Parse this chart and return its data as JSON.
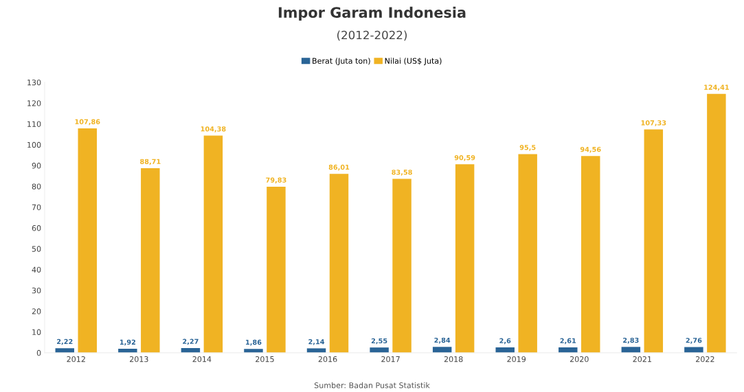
{
  "chart_data": {
    "type": "bar",
    "title": "Impor Garam Indonesia",
    "subtitle": "(2012-2022)",
    "categories": [
      "2012",
      "2013",
      "2014",
      "2015",
      "2016",
      "2017",
      "2018",
      "2019",
      "2020",
      "2021",
      "2022"
    ],
    "series": [
      {
        "name": "Berat (Juta ton)",
        "color": "#2a6496",
        "values": [
          2.22,
          1.92,
          2.27,
          1.86,
          2.14,
          2.55,
          2.84,
          2.6,
          2.61,
          2.83,
          2.76
        ],
        "value_labels": [
          "2,22",
          "1,92",
          "2,27",
          "1,86",
          "2,14",
          "2,55",
          "2,84",
          "2,6",
          "2,61",
          "2,83",
          "2,76"
        ]
      },
      {
        "name": "Nilai (US$ Juta)",
        "color": "#f0b323",
        "values": [
          107.86,
          88.71,
          104.38,
          79.83,
          86.01,
          83.58,
          90.59,
          95.5,
          94.56,
          107.33,
          124.41
        ],
        "value_labels": [
          "107,86",
          "88,71",
          "104,38",
          "79,83",
          "86,01",
          "83,58",
          "90,59",
          "95,5",
          "94,56",
          "107,33",
          "124,41"
        ]
      }
    ],
    "ylim": [
      0,
      130
    ],
    "yticks": [
      0,
      10,
      20,
      30,
      40,
      50,
      60,
      70,
      80,
      90,
      100,
      110,
      120,
      130
    ],
    "legend": "top",
    "annotations": [
      "Sumber: Badan Pusat Statistik"
    ]
  }
}
